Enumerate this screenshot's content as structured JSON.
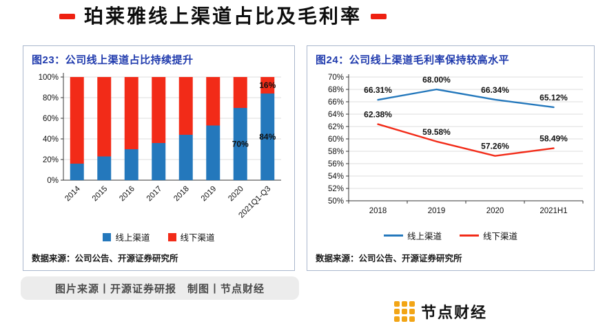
{
  "header": {
    "title": "珀莱雅线上渠道占比及毛利率",
    "accent_color": "#ee2011"
  },
  "colors": {
    "online_blue": "#2478bc",
    "offline_red": "#f22b18",
    "panel_title_blue": "#1f3aad",
    "grid": "#dcdcdc",
    "axis": "#333333"
  },
  "chart_data": [
    {
      "type": "bar",
      "stacked": true,
      "title": "图23：公司线上渠道占比持续提升",
      "categories": [
        "2014",
        "2015",
        "2016",
        "2017",
        "2018",
        "2019",
        "2020",
        "2021Q1-Q3"
      ],
      "series": [
        {
          "name": "线上渠道",
          "color": "#2478bc",
          "values": [
            16,
            23,
            30,
            36,
            44,
            53,
            70,
            84
          ]
        },
        {
          "name": "线下渠道",
          "color": "#f22b18",
          "values": [
            84,
            77,
            70,
            64,
            56,
            47,
            30,
            16
          ]
        }
      ],
      "ylim": [
        0,
        100
      ],
      "ytick_step": 20,
      "ytick_suffix": "%",
      "grid": true,
      "legend_position": "bottom",
      "data_labels": [
        {
          "series": 0,
          "index": 6,
          "text": "70%"
        },
        {
          "series": 0,
          "index": 7,
          "text": "84%"
        },
        {
          "series": 1,
          "index": 7,
          "text": "16%"
        }
      ],
      "source": "数据来源：公司公告、开源证券研究所"
    },
    {
      "type": "line",
      "title": "图24：公司线上渠道毛利率保持较高水平",
      "categories": [
        "2018",
        "2019",
        "2020",
        "2021H1"
      ],
      "series": [
        {
          "name": "线上渠道",
          "color": "#2478bc",
          "values": [
            66.31,
            68.0,
            66.34,
            65.12
          ]
        },
        {
          "name": "线下渠道",
          "color": "#f22b18",
          "values": [
            62.38,
            59.58,
            57.26,
            58.49
          ]
        }
      ],
      "ylim": [
        50,
        70
      ],
      "ytick_step": 2,
      "ytick_suffix": "%",
      "grid": true,
      "legend_position": "bottom",
      "data_label_decimals": 2,
      "data_label_suffix": "%",
      "source": "数据来源：公司公告、开源证券研究所"
    }
  ],
  "footer": {
    "caption": "图片来源丨开源证券研报　制图丨节点财经",
    "brand": "节点财经",
    "brand_color": "#f2a516"
  }
}
